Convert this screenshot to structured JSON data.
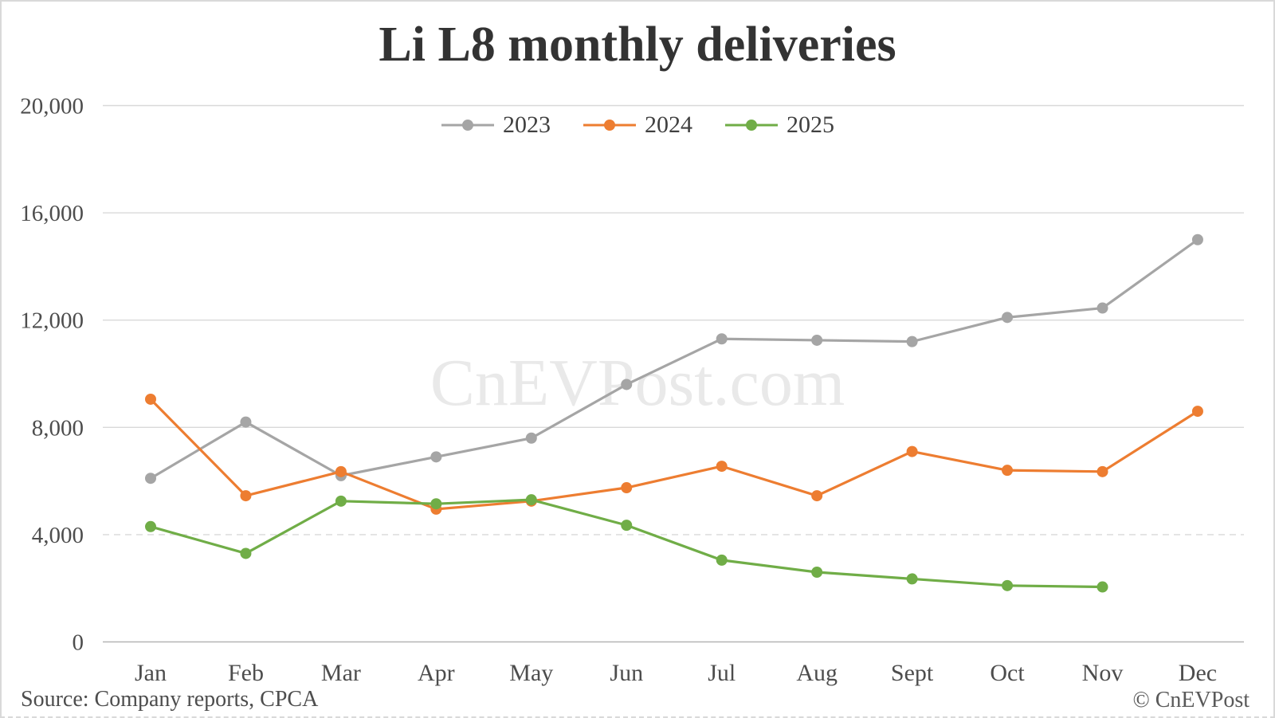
{
  "watermark": "CnEVPost.com",
  "footer": {
    "source": "Source: Company reports, CPCA",
    "copyright": "© CnEVPost"
  },
  "chart_data": {
    "type": "line",
    "title": "Li L8 monthly deliveries",
    "xlabel": "",
    "ylabel": "",
    "categories": [
      "Jan",
      "Feb",
      "Mar",
      "Apr",
      "May",
      "Jun",
      "Jul",
      "Aug",
      "Sept",
      "Oct",
      "Nov",
      "Dec"
    ],
    "series": [
      {
        "name": "2023",
        "color": "#a5a5a5",
        "values": [
          6100,
          8200,
          6200,
          6900,
          7600,
          9600,
          11300,
          11250,
          11200,
          12100,
          12450,
          15000
        ]
      },
      {
        "name": "2024",
        "color": "#ed7d31",
        "values": [
          9050,
          5450,
          6350,
          4950,
          5250,
          5750,
          6550,
          5450,
          7100,
          6400,
          6350,
          8600
        ]
      },
      {
        "name": "2025",
        "color": "#70ad47",
        "values": [
          4300,
          3300,
          5250,
          5150,
          5300,
          4350,
          3050,
          2600,
          2350,
          2100,
          2050,
          null
        ]
      }
    ],
    "ylim": [
      0,
      20000
    ],
    "ytick_interval": 4000,
    "ytick_labels": [
      "0",
      "4,000",
      "8,000",
      "12,000",
      "16,000",
      "20,000"
    ],
    "grid": true,
    "dashed_gridline_value": 4000,
    "legend_position": "top-center"
  }
}
